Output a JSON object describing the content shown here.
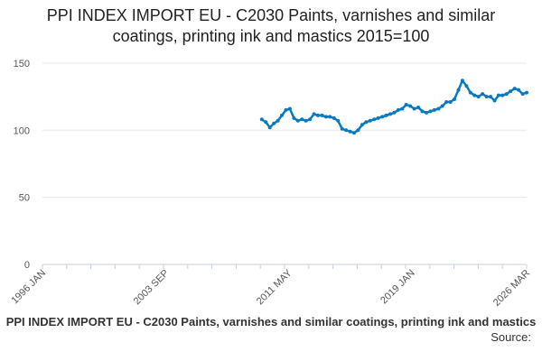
{
  "chart_data": {
    "type": "line",
    "title_lines": [
      "PPI INDEX IMPORT EU - C2030 Paints, varnishes and similar",
      "coatings, printing ink and mastics 2015=100"
    ],
    "xlabel": "",
    "ylabel": "",
    "y_ticks": [
      0,
      50,
      100,
      150
    ],
    "ylim": [
      0,
      160
    ],
    "x_range": [
      "1996-01",
      "2026-03"
    ],
    "x_tick_labels": [
      "1996 JAN",
      "2003 SEP",
      "2011 MAY",
      "2019 JAN",
      "2026 MAR"
    ],
    "x_tick_dates": [
      "1996-01",
      "2003-09",
      "2011-05",
      "2019-01",
      "2026-03"
    ],
    "grid": "horizontal",
    "legend_position": "bottom",
    "series": [
      {
        "name": "PPI INDEX IMPORT EU - C2030 Paints, varnishes and similar coatings, printing ink and mastics",
        "color": "#0a7abf",
        "x": [
          "2009-09",
          "2009-12",
          "2010-03",
          "2010-06",
          "2010-09",
          "2010-12",
          "2011-03",
          "2011-06",
          "2011-09",
          "2011-12",
          "2012-03",
          "2012-06",
          "2012-09",
          "2012-12",
          "2013-03",
          "2013-06",
          "2013-09",
          "2013-12",
          "2014-03",
          "2014-06",
          "2014-09",
          "2014-12",
          "2015-03",
          "2015-06",
          "2015-09",
          "2015-12",
          "2016-03",
          "2016-06",
          "2016-09",
          "2016-12",
          "2017-03",
          "2017-06",
          "2017-09",
          "2017-12",
          "2018-03",
          "2018-06",
          "2018-09",
          "2018-12",
          "2019-03",
          "2019-06",
          "2019-09",
          "2019-12",
          "2020-03",
          "2020-06",
          "2020-09",
          "2020-12",
          "2021-03",
          "2021-06",
          "2021-09",
          "2021-12",
          "2022-03",
          "2022-06",
          "2022-09",
          "2022-12",
          "2023-03",
          "2023-06",
          "2023-09",
          "2023-12",
          "2024-03",
          "2024-06",
          "2024-09",
          "2024-12",
          "2025-03",
          "2025-06",
          "2025-09",
          "2025-12",
          "2026-03"
        ],
        "y": [
          108,
          106,
          102,
          105,
          107,
          111,
          115,
          116,
          109,
          107,
          108,
          107,
          108,
          112,
          111,
          111,
          110,
          110,
          109,
          107,
          101,
          100,
          99,
          98,
          100,
          104,
          106,
          107,
          108,
          109,
          110,
          111,
          112,
          113,
          115,
          116,
          119,
          118,
          116,
          117,
          114,
          113,
          114,
          115,
          116,
          118,
          121,
          121,
          123,
          130,
          137,
          133,
          128,
          126,
          125,
          127,
          125,
          125,
          122,
          126,
          126,
          127,
          129,
          131,
          130,
          127,
          128
        ]
      }
    ]
  },
  "source_label": "Source:"
}
